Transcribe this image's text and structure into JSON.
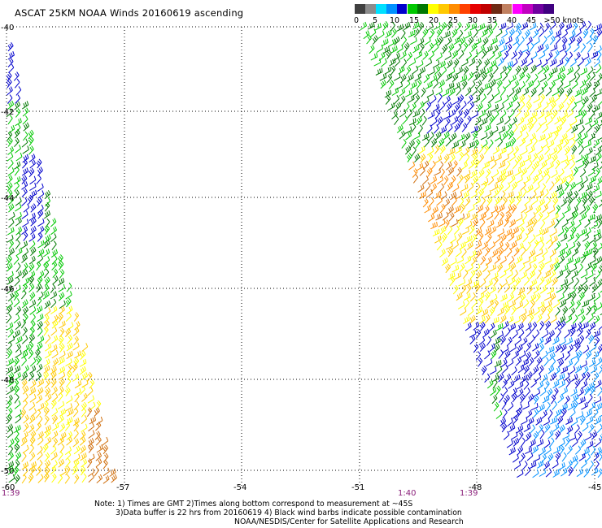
{
  "title": "ASCAT 25KM NOAA Winds 20160619 ascending",
  "legend": {
    "ticks": [
      "0",
      "5",
      "10",
      "15",
      "20",
      "25",
      "30",
      "35",
      "40",
      "45",
      ">50 knots"
    ],
    "colors": [
      "#404040",
      "#8c8c8c",
      "#00e0ff",
      "#0090ff",
      "#0000cc",
      "#00c800",
      "#007800",
      "#ffff00",
      "#ffc800",
      "#ff8c00",
      "#ff4000",
      "#e60000",
      "#c00000",
      "#6e2a14",
      "#c08060",
      "#ff00ff",
      "#c000c0",
      "#7000a0",
      "#400080"
    ]
  },
  "axes": {
    "lat_labels": [
      "-40",
      "-42",
      "-44",
      "-46",
      "-48",
      "-50"
    ],
    "lon_labels": [
      "-60",
      "-57",
      "-54",
      "-51",
      "-48",
      "-45"
    ]
  },
  "time_labels": [
    "1:39",
    "1:40",
    "1:39"
  ],
  "notes": [
    "Note: 1) Times are GMT 2)Times along bottom correspond to measurement at ~45S",
    "3)Data buffer is 22 hrs from 20160619 4) Black wind barbs indicate possible contamination",
    "NOAA/NESDIS/Center for Satellite Applications and Research"
  ],
  "wind_colors": {
    "blue": "#0000cc",
    "light_blue": "#0090ff",
    "green": "#00c800",
    "dark_green": "#007800",
    "yellow": "#ffff00",
    "gold": "#ffc800",
    "orange": "#ff8c00",
    "brown_orange": "#d07010"
  }
}
